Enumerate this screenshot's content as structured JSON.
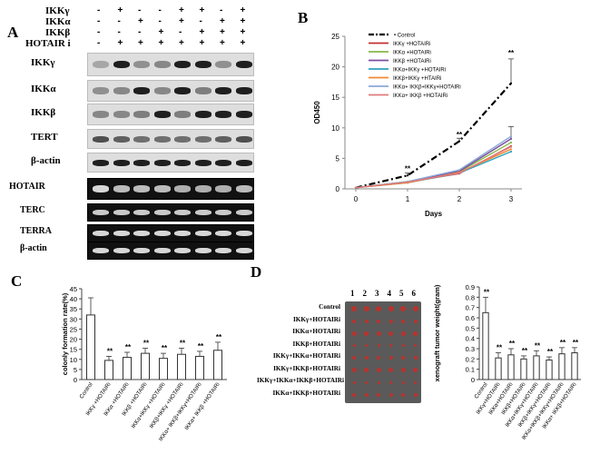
{
  "panelA": {
    "letter": "A",
    "header_rows": [
      {
        "label": "IKKγ",
        "marks": [
          "-",
          "+",
          "-",
          "-",
          "+",
          "+",
          "-",
          "+"
        ]
      },
      {
        "label": "IKKα",
        "marks": [
          "-",
          "-",
          "+",
          "-",
          "+",
          "-",
          "+",
          "+"
        ]
      },
      {
        "label": "IKKβ",
        "marks": [
          "-",
          "-",
          "-",
          "+",
          "-",
          "+",
          "+",
          "+"
        ]
      },
      {
        "label": "HOTAIR i",
        "marks": [
          "-",
          "+",
          "+",
          "+",
          "+",
          "+",
          "+",
          "+"
        ]
      }
    ],
    "blot_labels": [
      "IKKγ",
      "IKKα",
      "IKKβ",
      "TERT",
      "β-actin",
      "HOTAIR",
      "TERC",
      "TERRA",
      "β-actin"
    ]
  },
  "panelB": {
    "letter": "B",
    "ylabel": "OD450",
    "xlabel": "Days",
    "yticks": [
      "0",
      "5",
      "10",
      "15",
      "20",
      "25"
    ],
    "xticks": [
      "0",
      "1",
      "2",
      "3"
    ],
    "legend": [
      {
        "name": "Control",
        "color": "#000000"
      },
      {
        "name": "IKKγ +HOTAIRi",
        "color": "#c0302f"
      },
      {
        "name": "IKKα +HOTAIRi",
        "color": "#88b848"
      },
      {
        "name": "IKKβ +HOTAIRi",
        "color": "#7a4fa0"
      },
      {
        "name": "IKKα+IKKγ +HOTAIRi",
        "color": "#2ea3c0"
      },
      {
        "name": "IKKβ+IKKγ +HTAIRi",
        "color": "#f08a30"
      },
      {
        "name": "IKKα+ IKKβ+IKKγ+HOTAIRi",
        "color": "#8aa8d8"
      },
      {
        "name": "IKKα+ IKKβ +HOTAIRi",
        "color": "#e07a7a"
      }
    ],
    "annotations": [
      "**",
      "**",
      "**"
    ]
  },
  "panelC": {
    "letter": "C",
    "ylabel": "colonly formation rate(%)",
    "yticks": [
      "0",
      "5",
      "10",
      "15",
      "20",
      "25",
      "30",
      "35",
      "40",
      "45"
    ],
    "categories": [
      "Control",
      "IKKγ +HOTAIRi",
      "IKKα +HOTAIRi",
      "IKKβ +HOTAIRi",
      "IKKα+IKKγ +HOTAIRi",
      "IKKβ+IKKγ +HOTAIRi",
      "IKKα+ IKKβ+IKKγ+HOTAIRi",
      "IKKα+ IKKβ +HOTAIRi"
    ],
    "sig": [
      "",
      "**",
      "**",
      "**",
      "**",
      "**",
      "**",
      "**"
    ]
  },
  "panelD": {
    "letter": "D",
    "columns": [
      "1",
      "2",
      "3",
      "4",
      "5",
      "6"
    ],
    "row_labels": [
      "Control",
      "IKKγ+HOTAIRi",
      "IKKα+HOTAIRi",
      "IKKβ+HOTAIRi",
      "IKKγ+IKKα+HOTAIRi",
      "IKKγ+IKKβ+HOTAIRi",
      "IKKγ+IKKα+IKKβ+HOTAIRi",
      "IKKα+IKKβ+HOTAIRi"
    ],
    "ylabel": "xenograft  tumor weight(gram)",
    "yticks": [
      "0",
      "0.1",
      "0.2",
      "0.3",
      "0.4",
      "0.5",
      "0.6",
      "0.7",
      "0.8",
      "0.9"
    ],
    "categories": [
      "Control",
      "IKKγ+HOTAIRi",
      "IKKα+HOTAIRi",
      "IKKβ+HOTAIRi",
      "IKKα+IKKγ+HOTAIRi",
      "IKKβ+IKKγ+HOTAIRi",
      "IKKα+IKKβ+IKKγ+HOTAIRi",
      "IKKα+ IKKβ+HOTAIRi"
    ],
    "sig": [
      "**",
      "**",
      "**",
      "**",
      "**",
      "**",
      "**",
      "**"
    ]
  },
  "chart_data": [
    {
      "type": "line",
      "panel": "B",
      "xlabel": "Days",
      "ylabel": "OD450",
      "x": [
        0,
        1,
        2,
        3
      ],
      "ylim": [
        0,
        25
      ],
      "series": [
        {
          "name": "Control",
          "values": [
            0.2,
            2.2,
            7.8,
            17.3
          ],
          "errors": [
            0,
            0.4,
            0.5,
            4.0
          ],
          "style": "dash-dot"
        },
        {
          "name": "IKKγ +HOTAIRi",
          "values": [
            0.2,
            1.1,
            2.5,
            7.0
          ]
        },
        {
          "name": "IKKα +HOTAIRi",
          "values": [
            0.2,
            1.2,
            2.8,
            7.6
          ]
        },
        {
          "name": "IKKβ +HOTAIRi",
          "values": [
            0.2,
            1.1,
            2.9,
            8.2
          ],
          "errors": [
            0,
            0,
            0,
            2.0
          ]
        },
        {
          "name": "IKKα+IKKγ +HOTAIRi",
          "values": [
            0.2,
            1.0,
            2.6,
            6.1
          ]
        },
        {
          "name": "IKKβ+IKKγ +HTAIRi",
          "values": [
            0.2,
            1.0,
            2.7,
            6.5
          ]
        },
        {
          "name": "IKKα+ IKKβ+IKKγ+HOTAIRi",
          "values": [
            0.2,
            1.2,
            3.1,
            8.6
          ]
        },
        {
          "name": "IKKα+ IKKβ +HOTAIRi",
          "values": [
            0.2,
            1.1,
            2.6,
            6.9
          ]
        }
      ]
    },
    {
      "type": "bar",
      "panel": "C",
      "ylabel": "colonly formation rate(%)",
      "ylim": [
        0,
        45
      ],
      "categories": [
        "Control",
        "IKKγ +HOTAIRi",
        "IKKα +HOTAIRi",
        "IKKβ +HOTAIRi",
        "IKKα+IKKγ +HOTAIRi",
        "IKKβ+IKKγ +HOTAIRi",
        "IKKα+ IKKβ+IKKγ+HOTAIRi",
        "IKKα+ IKKβ +HOTAIRi"
      ],
      "values": [
        32,
        9.5,
        11,
        13,
        10.5,
        12.5,
        11.5,
        14.5
      ],
      "errors": [
        8.5,
        2.0,
        2.5,
        2.5,
        2.5,
        3.0,
        2.5,
        4.0
      ]
    },
    {
      "type": "bar",
      "panel": "D",
      "ylabel": "xenograft  tumor weight(gram)",
      "ylim": [
        0,
        0.9
      ],
      "categories": [
        "Control",
        "IKKγ+HOTAIRi",
        "IKKα+HOTAIRi",
        "IKKβ+HOTAIRi",
        "IKKα+IKKγ+HOTAIRi",
        "IKKβ+IKKγ+HOTAIRi",
        "IKKα+IKKβ+IKKγ+HOTAIRi",
        "IKKα+ IKKβ+HOTAIRi"
      ],
      "values": [
        0.65,
        0.21,
        0.24,
        0.2,
        0.23,
        0.19,
        0.25,
        0.26
      ],
      "errors": [
        0.15,
        0.05,
        0.06,
        0.03,
        0.05,
        0.03,
        0.06,
        0.05
      ]
    }
  ]
}
